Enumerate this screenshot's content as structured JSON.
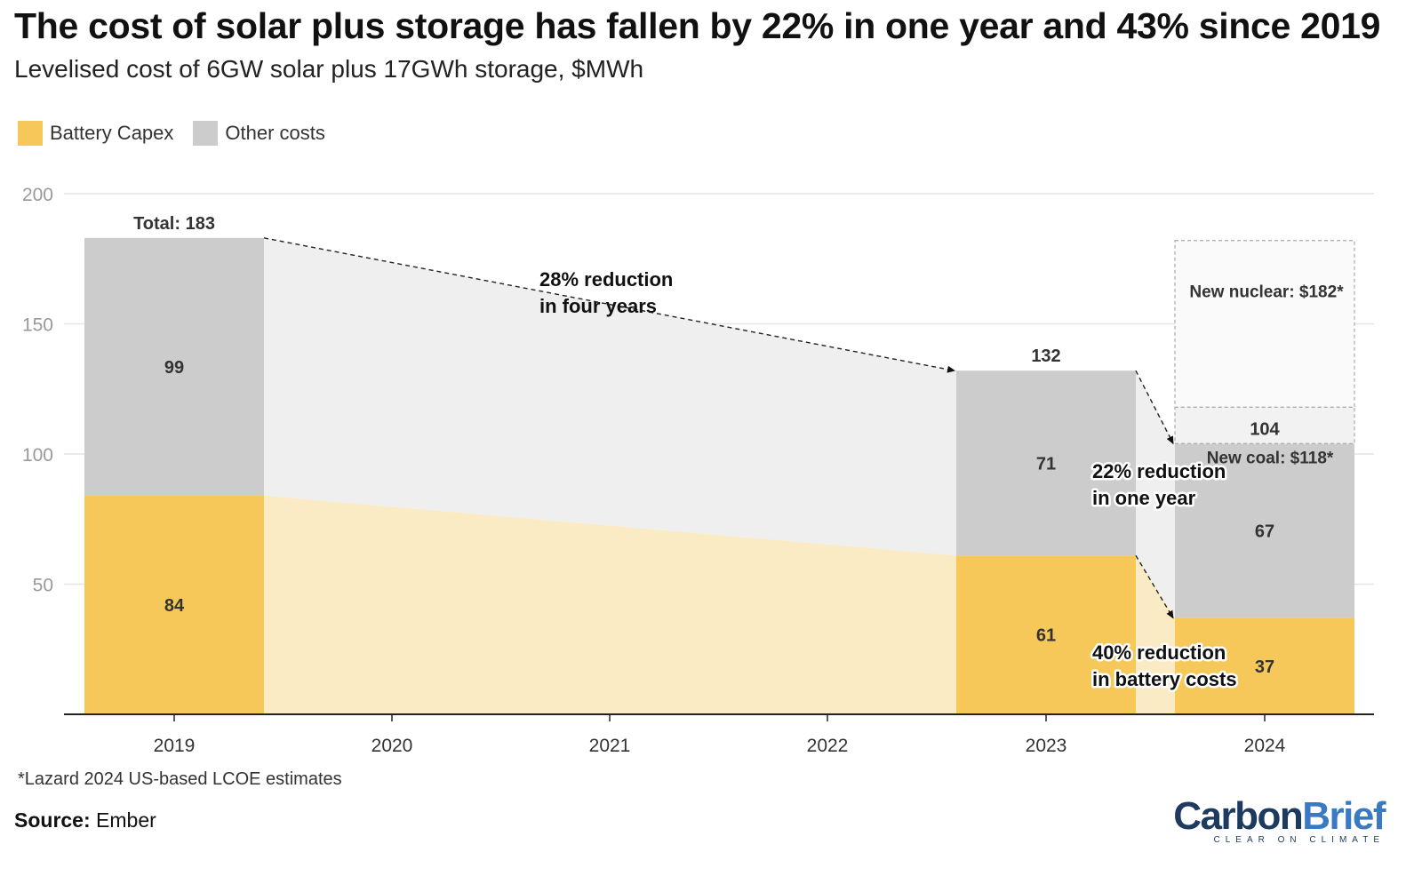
{
  "header": {
    "title": "The cost of solar plus storage has fallen by 22% in one year and 43% since 2019",
    "subtitle": "Levelised cost of 6GW solar plus 17GWh storage, $MWh"
  },
  "legend": [
    {
      "label": "Battery Capex",
      "color": "#f6c85a"
    },
    {
      "label": "Other costs",
      "color": "#cccccc"
    }
  ],
  "chart_data": {
    "type": "bar",
    "stacked": true,
    "categories": [
      "2019",
      "2023",
      "2024"
    ],
    "x_ticks": [
      "2019",
      "2020",
      "2021",
      "2022",
      "2023",
      "2024"
    ],
    "series": [
      {
        "name": "Battery Capex",
        "values": [
          84,
          61,
          37
        ],
        "color": "#f6c85a"
      },
      {
        "name": "Other costs",
        "values": [
          99,
          71,
          67
        ],
        "color": "#cccccc"
      }
    ],
    "totals": {
      "2019": "Total: 183",
      "2023": "132",
      "2024": "104"
    },
    "ylim": [
      0,
      200
    ],
    "y_ticks": [
      50,
      100,
      150,
      200
    ],
    "grid": true,
    "benchmarks": [
      {
        "label": "New nuclear: $182*",
        "value": 182
      },
      {
        "label": "New coal: $118*",
        "value": 118
      }
    ],
    "annotations": [
      {
        "line1": "28% reduction",
        "line2": "in four years"
      },
      {
        "line1": "22% reduction",
        "line2": "in one year"
      },
      {
        "line1": "40% reduction",
        "line2": "in battery costs"
      }
    ]
  },
  "footnote": "*Lazard 2024 US-based LCOE estimates",
  "source": {
    "label": "Source:",
    "value": "Ember"
  },
  "logo": {
    "carbon": "Carbon",
    "brief": "Brief",
    "tagline": "CLEAR ON CLIMATE"
  }
}
